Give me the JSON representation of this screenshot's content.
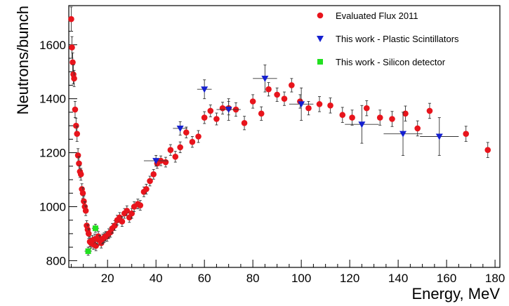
{
  "chart_data": {
    "type": "scatter",
    "xlabel": "Energy, MeV",
    "ylabel": "Neutrons/bunch",
    "xlim": [
      4,
      182
    ],
    "ylim": [
      775,
      1745
    ],
    "x_ticks": [
      20,
      40,
      60,
      80,
      100,
      120,
      140,
      160,
      180
    ],
    "y_ticks": [
      800,
      1000,
      1200,
      1400,
      1600
    ],
    "legend_position": "top-right",
    "series": [
      {
        "name": "Evaluated Flux 2011",
        "marker": "circle",
        "color": "#e8141c",
        "points": [
          [
            5.0,
            1695,
            45
          ],
          [
            5.3,
            1590,
            40
          ],
          [
            5.6,
            1535,
            35
          ],
          [
            5.9,
            1490,
            35
          ],
          [
            6.2,
            1475,
            30
          ],
          [
            6.6,
            1360,
            30
          ],
          [
            7.0,
            1300,
            28
          ],
          [
            7.4,
            1270,
            28
          ],
          [
            7.8,
            1190,
            25
          ],
          [
            8.2,
            1160,
            25
          ],
          [
            8.6,
            1130,
            22
          ],
          [
            9.0,
            1120,
            22
          ],
          [
            9.4,
            1065,
            20
          ],
          [
            9.8,
            1050,
            20
          ],
          [
            10.2,
            1020,
            20
          ],
          [
            10.6,
            1000,
            18
          ],
          [
            11.0,
            985,
            18
          ],
          [
            11.4,
            930,
            18
          ],
          [
            11.8,
            915,
            18
          ],
          [
            12.2,
            900,
            18
          ],
          [
            12.7,
            870,
            18
          ],
          [
            13.2,
            865,
            18
          ],
          [
            13.7,
            875,
            18
          ],
          [
            14.2,
            860,
            18
          ],
          [
            14.7,
            880,
            18
          ],
          [
            15.2,
            855,
            18
          ],
          [
            15.7,
            880,
            18
          ],
          [
            16.2,
            890,
            18
          ],
          [
            16.8,
            875,
            18
          ],
          [
            17.4,
            865,
            18
          ],
          [
            18.0,
            880,
            18
          ],
          [
            18.6,
            885,
            18
          ],
          [
            19.2,
            890,
            18
          ],
          [
            19.8,
            890,
            18
          ],
          [
            20.5,
            900,
            18
          ],
          [
            21.2,
            905,
            18
          ],
          [
            22.0,
            920,
            18
          ],
          [
            23.0,
            930,
            18
          ],
          [
            24.0,
            950,
            18
          ],
          [
            25.0,
            960,
            18
          ],
          [
            26.0,
            945,
            18
          ],
          [
            27.0,
            975,
            18
          ],
          [
            28.0,
            985,
            18
          ],
          [
            29.0,
            960,
            18
          ],
          [
            30.0,
            975,
            18
          ],
          [
            31.0,
            1000,
            18
          ],
          [
            32.5,
            1010,
            18
          ],
          [
            33.5,
            1005,
            18
          ],
          [
            35.0,
            1055,
            18
          ],
          [
            36.0,
            1065,
            18
          ],
          [
            37.5,
            1095,
            18
          ],
          [
            39.0,
            1120,
            18
          ],
          [
            40.5,
            1160,
            18
          ],
          [
            42.0,
            1170,
            18
          ],
          [
            44.0,
            1165,
            18
          ],
          [
            46.0,
            1210,
            20
          ],
          [
            48.0,
            1185,
            20
          ],
          [
            50.0,
            1220,
            20
          ],
          [
            52.5,
            1275,
            20
          ],
          [
            55.0,
            1240,
            20
          ],
          [
            57.5,
            1260,
            22
          ],
          [
            60.0,
            1330,
            22
          ],
          [
            62.5,
            1355,
            22
          ],
          [
            65.0,
            1325,
            22
          ],
          [
            67.5,
            1365,
            22
          ],
          [
            70.0,
            1365,
            25
          ],
          [
            73.0,
            1360,
            25
          ],
          [
            76.5,
            1310,
            25
          ],
          [
            80.0,
            1390,
            25
          ],
          [
            83.5,
            1345,
            25
          ],
          [
            86.5,
            1435,
            25
          ],
          [
            90.0,
            1415,
            25
          ],
          [
            93.0,
            1400,
            25
          ],
          [
            96.0,
            1450,
            25
          ],
          [
            99.5,
            1390,
            25
          ],
          [
            103.0,
            1365,
            25
          ],
          [
            107.5,
            1380,
            28
          ],
          [
            112.0,
            1375,
            28
          ],
          [
            117.0,
            1340,
            28
          ],
          [
            121.0,
            1330,
            28
          ],
          [
            127.0,
            1365,
            28
          ],
          [
            132.5,
            1330,
            28
          ],
          [
            137.5,
            1325,
            28
          ],
          [
            143.0,
            1345,
            28
          ],
          [
            148.0,
            1290,
            28
          ],
          [
            153.0,
            1355,
            28
          ],
          [
            168.0,
            1270,
            28
          ],
          [
            177.0,
            1210,
            28
          ]
        ]
      },
      {
        "name": "This work - Plastic Scintillators",
        "marker": "triangle-down",
        "color": "#1520d0",
        "points": [
          [
            40,
            1170,
            5,
            20
          ],
          [
            50,
            1290,
            3,
            25
          ],
          [
            60,
            1435,
            3,
            35
          ],
          [
            70,
            1360,
            5,
            40
          ],
          [
            85,
            1475,
            5,
            50
          ],
          [
            100,
            1380,
            5,
            60
          ],
          [
            125,
            1305,
            7,
            70
          ],
          [
            142,
            1270,
            8,
            80
          ],
          [
            157,
            1260,
            8,
            70
          ]
        ]
      },
      {
        "name": "This work - Silicon detector",
        "marker": "square",
        "color": "#22e020",
        "points": [
          [
            12,
            835,
            1.5,
            15
          ],
          [
            15,
            920,
            1.5,
            15
          ]
        ]
      }
    ]
  }
}
